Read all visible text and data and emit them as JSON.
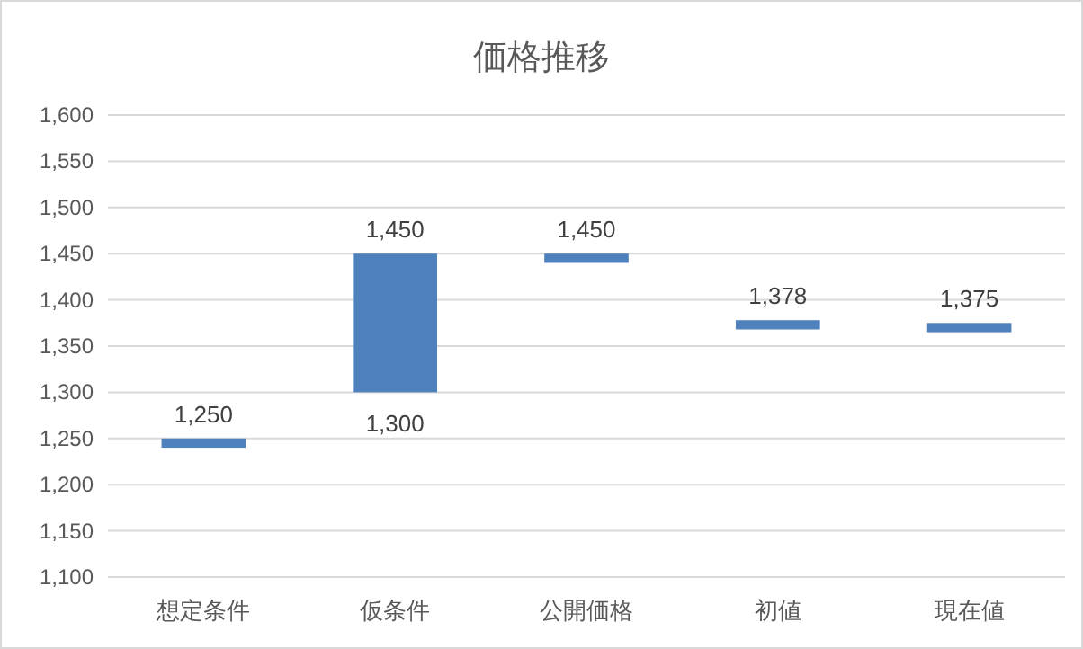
{
  "chart_data": {
    "type": "bar",
    "title": "価格推移",
    "categories": [
      "想定条件",
      "仮条件",
      "公開価格",
      "初値",
      "現在値"
    ],
    "base": [
      1240,
      1300,
      1440,
      1368,
      1365
    ],
    "values": [
      10,
      150,
      10,
      10,
      10
    ],
    "color": "#4f81bd",
    "value_labels": [
      "1,250",
      "1,450",
      "1,450",
      "1,378",
      "1,375"
    ],
    "annotations": [
      {
        "text": "1,300",
        "x": "仮条件",
        "y": 1300
      }
    ],
    "ylim": [
      1100,
      1600
    ],
    "yticks": [
      {
        "value": 1100,
        "label": "1,100"
      },
      {
        "value": 1150,
        "label": "1,150"
      },
      {
        "value": 1200,
        "label": "1,200"
      },
      {
        "value": 1250,
        "label": "1,250"
      },
      {
        "value": 1300,
        "label": "1,300"
      },
      {
        "value": 1350,
        "label": "1,350"
      },
      {
        "value": 1400,
        "label": "1,400"
      },
      {
        "value": 1450,
        "label": "1,450"
      },
      {
        "value": 1500,
        "label": "1,500"
      },
      {
        "value": 1550,
        "label": "1,550"
      },
      {
        "value": 1600,
        "label": "1,600"
      }
    ],
    "grid": "y"
  }
}
